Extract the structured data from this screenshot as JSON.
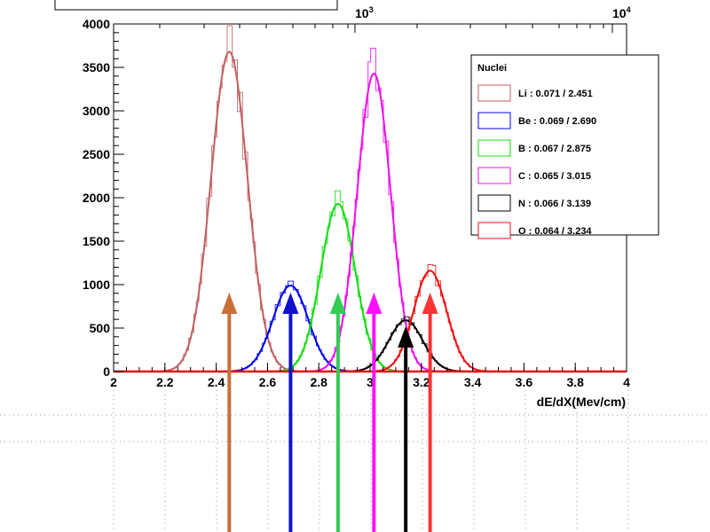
{
  "chart_data": {
    "type": "line",
    "xlabel": "dE/dX(Mev/cm)",
    "xlim": [
      2,
      4
    ],
    "ylim": [
      0,
      4000
    ],
    "x_ticks": [
      "2",
      "2.2",
      "2.4",
      "2.6",
      "2.8",
      "3",
      "3.2",
      "3.4",
      "3.6",
      "3.8",
      "4"
    ],
    "y_ticks": [
      "0",
      "500",
      "1000",
      "1500",
      "2000",
      "2500",
      "3000",
      "3500",
      "4000"
    ],
    "top_axis_labels": [
      {
        "base": "10",
        "exp": "3"
      },
      {
        "base": "10",
        "exp": "4"
      }
    ],
    "legend": {
      "header": "Nuclei",
      "position": "top-right"
    },
    "series": [
      {
        "name": "Li : 0.071 / 2.451",
        "mean": 2.451,
        "sigma": 0.071,
        "peak": 3680,
        "hist_peak": 3980,
        "color": "#c06060"
      },
      {
        "name": "Be : 0.069 / 2.690",
        "mean": 2.69,
        "sigma": 0.069,
        "peak": 990,
        "hist_peak": 1040,
        "color": "#0000ee"
      },
      {
        "name": "B : 0.067 / 2.875",
        "mean": 2.875,
        "sigma": 0.067,
        "peak": 1930,
        "hist_peak": 2080,
        "color": "#11dd11"
      },
      {
        "name": "C : 0.065 / 3.015",
        "mean": 3.015,
        "sigma": 0.065,
        "peak": 3430,
        "hist_peak": 3720,
        "color": "#ee11ee"
      },
      {
        "name": "N : 0.066 / 3.139",
        "mean": 3.139,
        "sigma": 0.066,
        "peak": 590,
        "hist_peak": 630,
        "color": "#000000"
      },
      {
        "name": "O : 0.064 / 3.234",
        "mean": 3.234,
        "sigma": 0.064,
        "peak": 1160,
        "hist_peak": 1230,
        "color": "#ee1111"
      }
    ],
    "arrows": [
      {
        "x": 2.451,
        "color": "#c8703a"
      },
      {
        "x": 2.69,
        "color": "#1010cc"
      },
      {
        "x": 2.875,
        "color": "#33cc55"
      },
      {
        "x": 3.015,
        "color": "#ff11ff"
      },
      {
        "x": 3.139,
        "color": "#000000"
      },
      {
        "x": 3.234,
        "color": "#ff3333"
      }
    ],
    "grid": "bottom-dotted"
  }
}
